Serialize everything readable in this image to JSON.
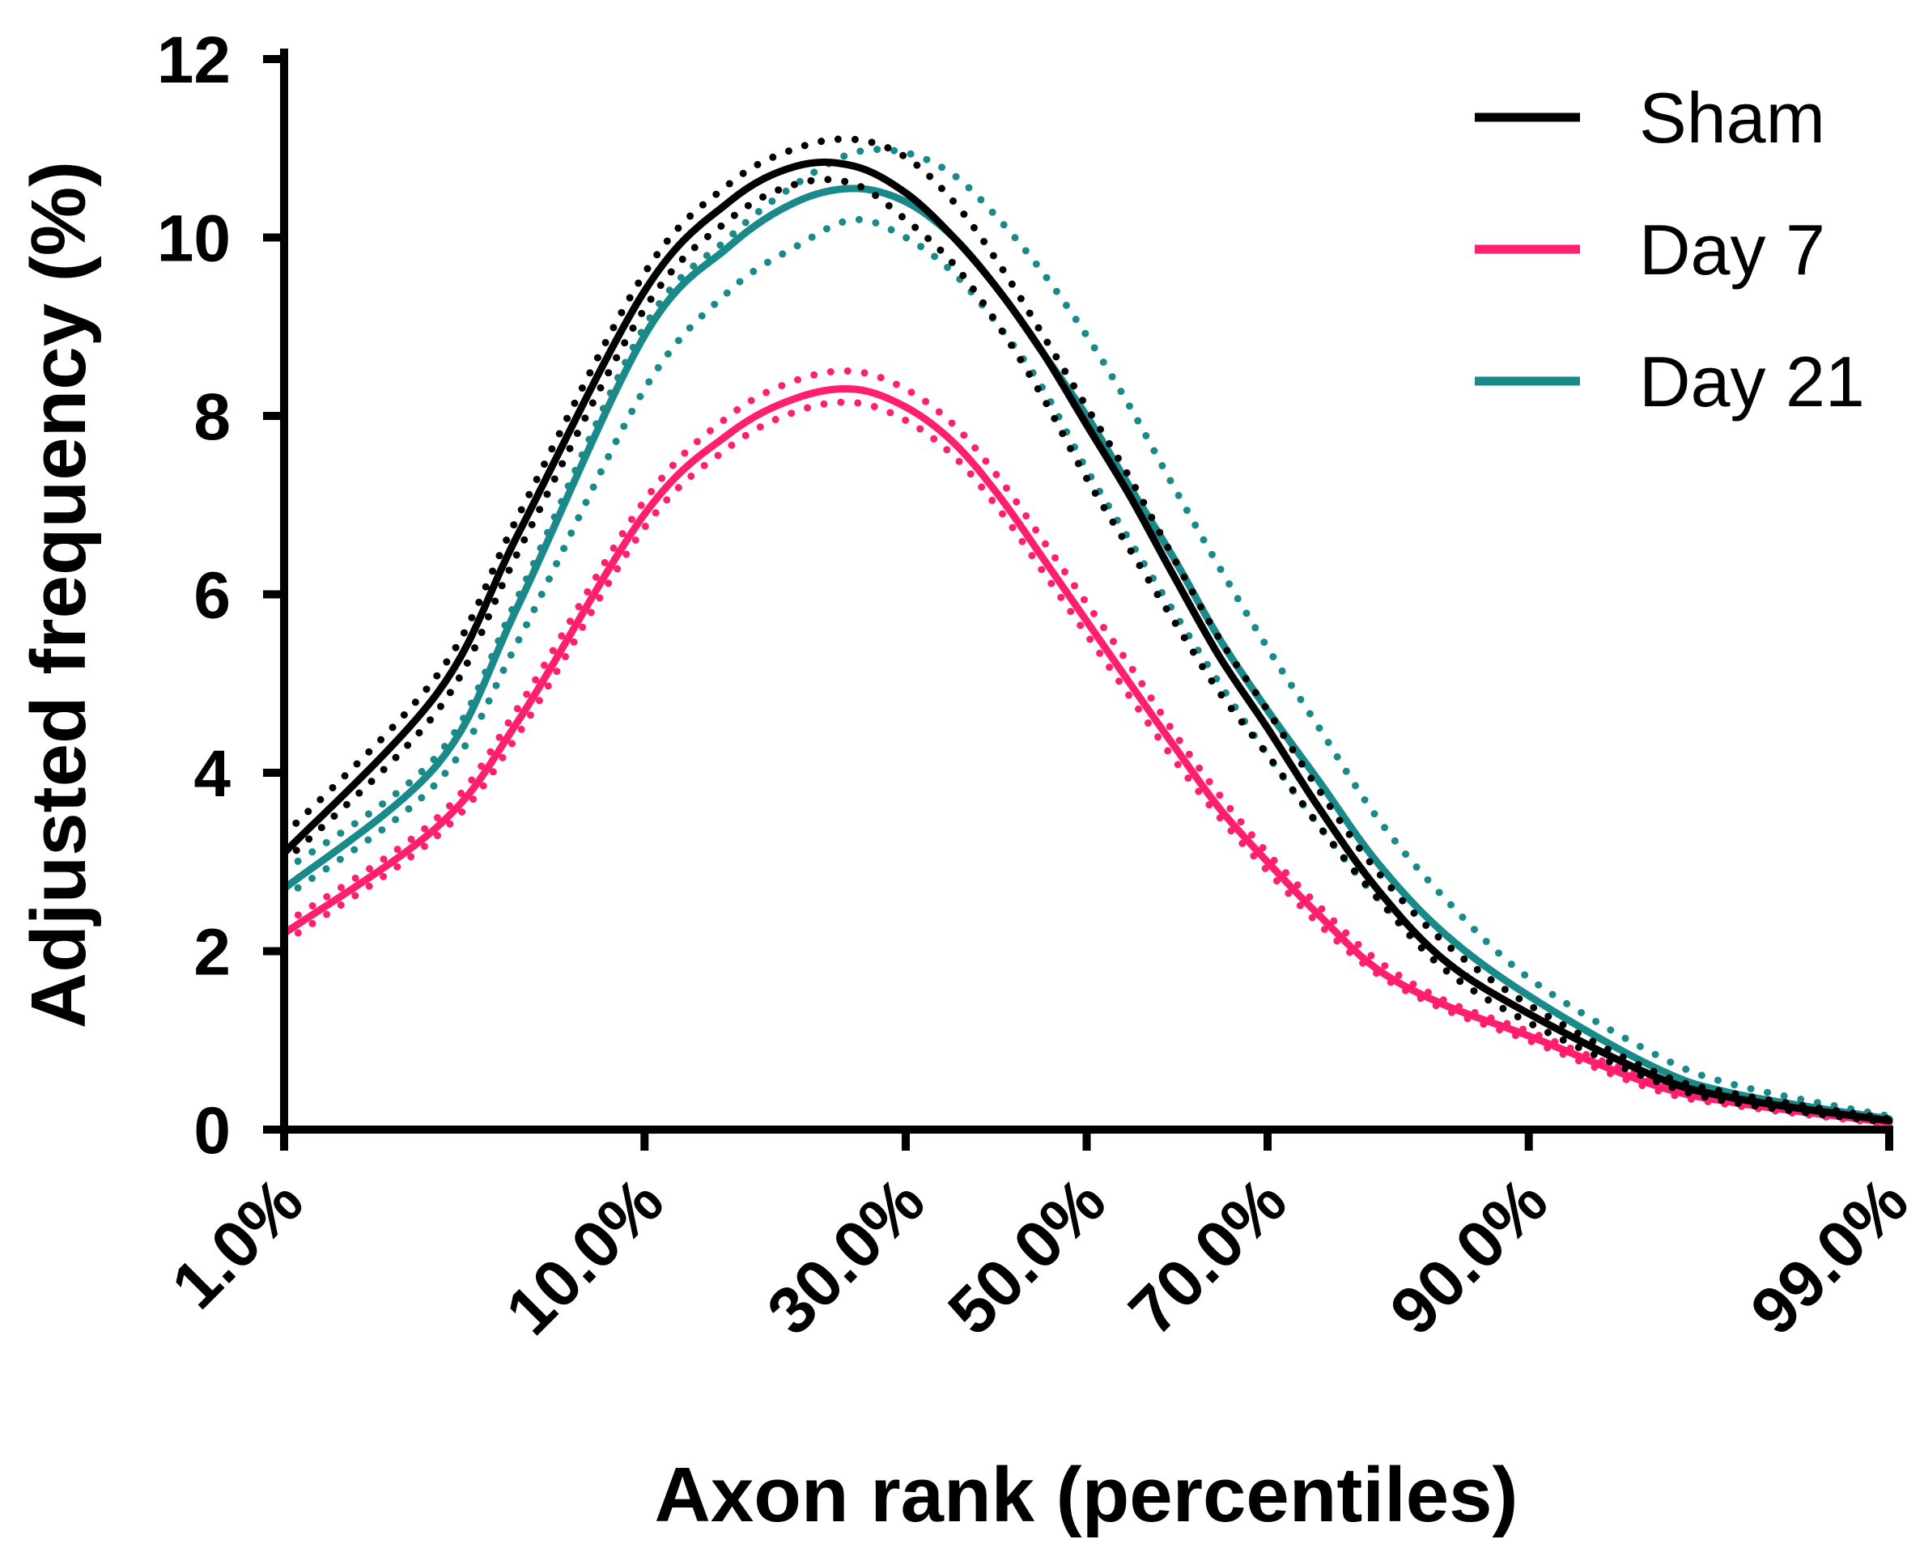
{
  "chart_data": {
    "type": "line",
    "title": "",
    "xlabel": "Axon rank (percentiles)",
    "ylabel": "Adjusted frequency (%)",
    "ylim": [
      0,
      12
    ],
    "yticks": [
      0,
      2,
      4,
      6,
      8,
      10,
      12
    ],
    "xlim": [
      1,
      99
    ],
    "xscale": "probit",
    "xticks": [
      1,
      10,
      30,
      50,
      70,
      90,
      99
    ],
    "xtick_labels": [
      "1.0%",
      "10.0%",
      "30.0%",
      "50.0%",
      "70.0%",
      "90.0%",
      "99.0%"
    ],
    "legend_position": "top-right",
    "series": [
      {
        "name": "Sham",
        "color": "#000000",
        "x": [
          1,
          3,
          5,
          10,
          15,
          20,
          25,
          30,
          35,
          40,
          45,
          50,
          55,
          60,
          65,
          70,
          75,
          80,
          85,
          90,
          95,
          97,
          99
        ],
        "values": [
          3.1,
          4.9,
          6.7,
          9.4,
          10.4,
          10.8,
          10.8,
          10.5,
          10.0,
          9.4,
          8.7,
          7.9,
          7.1,
          6.2,
          5.3,
          4.5,
          3.6,
          2.7,
          1.9,
          1.3,
          0.6,
          0.35,
          0.1
        ],
        "ci_upper": [
          3.3,
          5.1,
          6.9,
          9.6,
          10.6,
          11.0,
          11.1,
          10.9,
          10.4,
          9.7,
          8.9,
          8.1,
          7.3,
          6.4,
          5.5,
          4.7,
          3.8,
          2.9,
          2.1,
          1.4,
          0.65,
          0.4,
          0.12
        ],
        "ci_lower": [
          3.0,
          4.7,
          6.5,
          9.2,
          10.2,
          10.6,
          10.6,
          10.2,
          9.7,
          9.0,
          8.2,
          7.3,
          6.5,
          5.7,
          4.9,
          4.2,
          3.4,
          2.6,
          1.8,
          1.2,
          0.55,
          0.3,
          0.08
        ]
      },
      {
        "name": "Day 7",
        "color": "#ff1f6e",
        "x": [
          1,
          3,
          5,
          10,
          15,
          20,
          25,
          30,
          35,
          40,
          45,
          50,
          55,
          60,
          65,
          70,
          75,
          80,
          85,
          90,
          95,
          97,
          99
        ],
        "values": [
          2.2,
          3.4,
          4.6,
          6.9,
          7.8,
          8.2,
          8.3,
          8.1,
          7.7,
          7.1,
          6.4,
          5.7,
          5.0,
          4.3,
          3.6,
          3.0,
          2.4,
          1.8,
          1.4,
          1.05,
          0.5,
          0.3,
          0.08
        ],
        "ci_upper": [
          2.3,
          3.5,
          4.75,
          7.05,
          8.0,
          8.4,
          8.5,
          8.3,
          7.9,
          7.3,
          6.6,
          5.9,
          5.2,
          4.45,
          3.75,
          3.1,
          2.5,
          1.9,
          1.45,
          1.1,
          0.55,
          0.33,
          0.1
        ],
        "ci_lower": [
          2.1,
          3.3,
          4.45,
          6.75,
          7.65,
          8.05,
          8.15,
          7.95,
          7.55,
          6.95,
          6.25,
          5.55,
          4.85,
          4.15,
          3.5,
          2.9,
          2.3,
          1.75,
          1.35,
          1.0,
          0.45,
          0.27,
          0.06
        ]
      },
      {
        "name": "Day 21",
        "color": "#198a89",
        "x": [
          1,
          3,
          5,
          10,
          15,
          20,
          25,
          30,
          35,
          40,
          45,
          50,
          55,
          60,
          65,
          70,
          75,
          80,
          85,
          90,
          95,
          97,
          99
        ],
        "values": [
          2.7,
          4.1,
          5.9,
          8.9,
          9.9,
          10.4,
          10.55,
          10.4,
          10.0,
          9.4,
          8.7,
          8.0,
          7.2,
          6.4,
          5.5,
          4.7,
          3.9,
          3.0,
          2.2,
          1.5,
          0.7,
          0.4,
          0.12
        ],
        "ci_upper": [
          2.9,
          4.2,
          6.0,
          9.0,
          10.0,
          10.6,
          10.95,
          10.95,
          10.7,
          10.2,
          9.6,
          8.9,
          8.1,
          7.2,
          6.3,
          5.4,
          4.5,
          3.5,
          2.6,
          1.7,
          0.85,
          0.5,
          0.15
        ],
        "ci_lower": [
          2.6,
          3.9,
          5.5,
          8.3,
          9.4,
          9.9,
          10.2,
          10.0,
          9.6,
          9.0,
          8.3,
          7.4,
          6.6,
          5.8,
          5.0,
          4.2,
          3.4,
          2.6,
          1.9,
          1.3,
          0.6,
          0.35,
          0.1
        ]
      }
    ]
  }
}
